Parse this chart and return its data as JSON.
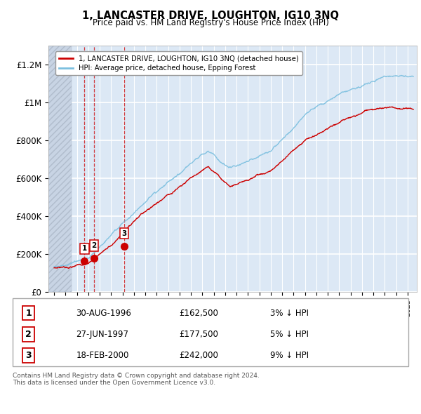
{
  "title": "1, LANCASTER DRIVE, LOUGHTON, IG10 3NQ",
  "subtitle": "Price paid vs. HM Land Registry's House Price Index (HPI)",
  "ylabel_ticks": [
    "£0",
    "£200K",
    "£400K",
    "£600K",
    "£800K",
    "£1M",
    "£1.2M"
  ],
  "ytick_values": [
    0,
    200000,
    400000,
    600000,
    800000,
    1000000,
    1200000
  ],
  "ylim": [
    0,
    1300000
  ],
  "xlim_start": 1993.5,
  "xlim_end": 2025.8,
  "hpi_color": "#7bbfdf",
  "price_color": "#cc0000",
  "legend_entries": [
    "1, LANCASTER DRIVE, LOUGHTON, IG10 3NQ (detached house)",
    "HPI: Average price, detached house, Epping Forest"
  ],
  "sales": [
    {
      "date_num": 1996.66,
      "price": 162500,
      "label": "1"
    },
    {
      "date_num": 1997.49,
      "price": 177500,
      "label": "2"
    },
    {
      "date_num": 2000.13,
      "price": 242000,
      "label": "3"
    }
  ],
  "sale_labels_table": [
    {
      "num": "1",
      "date": "30-AUG-1996",
      "price": "£162,500",
      "hpi": "3% ↓ HPI"
    },
    {
      "num": "2",
      "date": "27-JUN-1997",
      "price": "£177,500",
      "hpi": "5% ↓ HPI"
    },
    {
      "num": "3",
      "date": "18-FEB-2000",
      "price": "£242,000",
      "hpi": "9% ↓ HPI"
    }
  ],
  "footer": "Contains HM Land Registry data © Crown copyright and database right 2024.\nThis data is licensed under the Open Government Licence v3.0.",
  "bg_hatch_color": "#c8d4e4",
  "bg_main_color": "#dce8f5",
  "grid_color": "#ffffff",
  "hatch_end": 1995.5
}
